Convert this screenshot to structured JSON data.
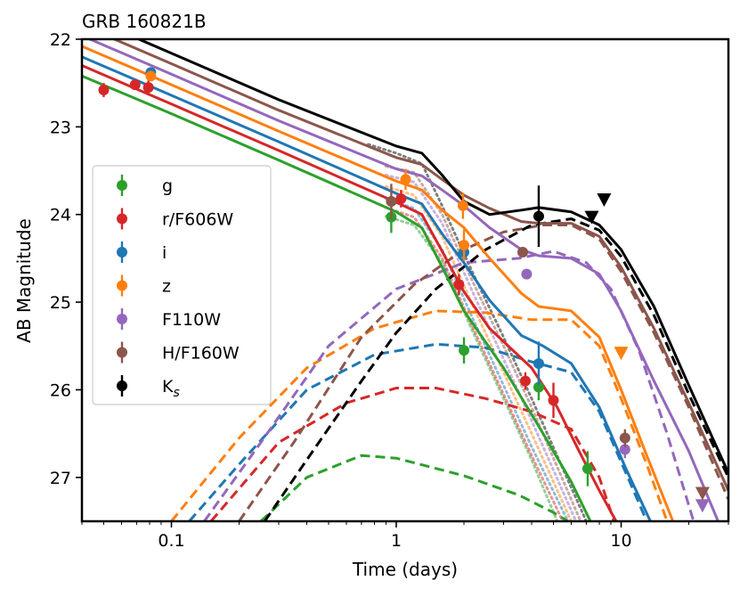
{
  "chart_data": {
    "type": "scatter",
    "title": "GRB 160821B",
    "xlabel": "Time (days)",
    "ylabel": "AB Magnitude",
    "xscale": "log",
    "xlim": [
      0.04,
      30
    ],
    "ylim": [
      27.5,
      22
    ],
    "y_inverted": true,
    "grid": false,
    "legend_position": "center-left",
    "xticks": [
      {
        "value": 0.1,
        "label": "0.1"
      },
      {
        "value": 1,
        "label": "1"
      },
      {
        "value": 10,
        "label": "10"
      }
    ],
    "yticks": [
      {
        "value": 22,
        "label": "22"
      },
      {
        "value": 23,
        "label": "23"
      },
      {
        "value": 24,
        "label": "24"
      },
      {
        "value": 25,
        "label": "25"
      },
      {
        "value": 26,
        "label": "26"
      },
      {
        "value": 27,
        "label": "27"
      }
    ],
    "series": [
      {
        "name": "g",
        "label_main": "g",
        "label_sub": "",
        "color": "#2ca02c",
        "points": [
          [
            0.95,
            24.03,
            0.18
          ],
          [
            2.0,
            25.55,
            0.15
          ],
          [
            4.3,
            25.97,
            0.15
          ],
          [
            7.1,
            26.9,
            0.2
          ]
        ],
        "upper_limits": [],
        "total_model": [
          [
            0.04,
            22.42
          ],
          [
            0.1,
            22.85
          ],
          [
            0.3,
            23.38
          ],
          [
            1.0,
            23.97
          ],
          [
            1.3,
            24.15
          ],
          [
            1.6,
            24.6
          ],
          [
            2.0,
            25.1
          ],
          [
            3.0,
            25.75
          ],
          [
            4.5,
            26.5
          ],
          [
            6.0,
            27.05
          ],
          [
            7.3,
            27.5
          ]
        ],
        "kilonova_model": [
          [
            0.25,
            27.5
          ],
          [
            0.4,
            27.0
          ],
          [
            0.7,
            26.75
          ],
          [
            1.0,
            26.78
          ],
          [
            2.0,
            26.98
          ],
          [
            3.5,
            27.2
          ],
          [
            5.0,
            27.4
          ],
          [
            5.8,
            27.5
          ]
        ],
        "afterglow_model": [
          [
            0.9,
            24.02
          ],
          [
            1.2,
            24.12
          ],
          [
            1.6,
            24.55
          ],
          [
            2.2,
            25.35
          ],
          [
            3.0,
            26.1
          ],
          [
            4.0,
            26.8
          ],
          [
            5.2,
            27.5
          ]
        ]
      },
      {
        "name": "r/F606W",
        "label_main": "r/F606W",
        "label_sub": "",
        "color": "#d62728",
        "points": [
          [
            0.05,
            22.58,
            0.08
          ],
          [
            0.069,
            22.52,
            0.06
          ],
          [
            0.079,
            22.55,
            0.08
          ],
          [
            1.05,
            23.82,
            0.1
          ],
          [
            1.9,
            24.8,
            0.12
          ],
          [
            3.75,
            25.9,
            0.1
          ],
          [
            5.0,
            26.12,
            0.2
          ]
        ],
        "upper_limits": [],
        "total_model": [
          [
            0.04,
            22.3
          ],
          [
            0.1,
            22.74
          ],
          [
            0.3,
            23.27
          ],
          [
            1.0,
            23.86
          ],
          [
            1.3,
            24.0
          ],
          [
            1.6,
            24.42
          ],
          [
            2.0,
            24.88
          ],
          [
            2.6,
            25.3
          ],
          [
            4.0,
            25.75
          ],
          [
            5.2,
            26.2
          ],
          [
            6.5,
            26.7
          ],
          [
            8.0,
            27.15
          ],
          [
            9.5,
            27.5
          ]
        ],
        "kilonova_model": [
          [
            0.15,
            27.5
          ],
          [
            0.3,
            26.6
          ],
          [
            0.6,
            26.15
          ],
          [
            1.0,
            25.98
          ],
          [
            1.5,
            25.98
          ],
          [
            2.5,
            26.1
          ],
          [
            4.0,
            26.25
          ],
          [
            6.0,
            26.45
          ],
          [
            8.0,
            27.0
          ],
          [
            9.3,
            27.5
          ]
        ],
        "afterglow_model": [
          [
            0.9,
            23.92
          ],
          [
            1.2,
            24.03
          ],
          [
            1.6,
            24.5
          ],
          [
            2.2,
            25.3
          ],
          [
            3.0,
            26.05
          ],
          [
            4.0,
            26.75
          ],
          [
            5.5,
            27.5
          ]
        ]
      },
      {
        "name": "i",
        "label_main": "i",
        "label_sub": "",
        "color": "#1f77b4",
        "points": [
          [
            0.081,
            22.38,
            0.05
          ],
          [
            2.0,
            24.43,
            0.1
          ],
          [
            4.3,
            25.7,
            0.25
          ]
        ],
        "upper_limits": [],
        "total_model": [
          [
            0.04,
            22.2
          ],
          [
            0.1,
            22.64
          ],
          [
            0.3,
            23.17
          ],
          [
            1.0,
            23.76
          ],
          [
            1.3,
            23.88
          ],
          [
            1.6,
            24.22
          ],
          [
            2.0,
            24.55
          ],
          [
            2.6,
            24.98
          ],
          [
            3.6,
            25.38
          ],
          [
            4.5,
            25.5
          ],
          [
            6.0,
            25.7
          ],
          [
            8.0,
            26.2
          ],
          [
            10.5,
            26.9
          ],
          [
            13.5,
            27.5
          ]
        ],
        "kilonova_model": [
          [
            0.12,
            27.5
          ],
          [
            0.2,
            26.85
          ],
          [
            0.4,
            26.0
          ],
          [
            0.8,
            25.6
          ],
          [
            1.5,
            25.48
          ],
          [
            2.5,
            25.52
          ],
          [
            4.0,
            25.68
          ],
          [
            6.0,
            25.8
          ],
          [
            8.0,
            26.25
          ],
          [
            10.5,
            26.95
          ],
          [
            13.0,
            27.5
          ]
        ],
        "afterglow_model": [
          [
            0.9,
            23.82
          ],
          [
            1.2,
            23.93
          ],
          [
            1.6,
            24.4
          ],
          [
            2.2,
            25.2
          ],
          [
            3.0,
            25.95
          ],
          [
            4.0,
            26.65
          ],
          [
            5.8,
            27.5
          ]
        ]
      },
      {
        "name": "z",
        "label_main": "z",
        "label_sub": "",
        "color": "#ff7f0e",
        "points": [
          [
            0.081,
            22.42,
            0.05
          ],
          [
            1.1,
            23.6,
            0.12
          ],
          [
            1.98,
            23.9,
            0.15
          ],
          [
            2.0,
            24.35,
            0.18
          ]
        ],
        "upper_limits": [
          [
            10.0,
            25.58
          ]
        ],
        "total_model": [
          [
            0.04,
            22.08
          ],
          [
            0.1,
            22.52
          ],
          [
            0.3,
            23.05
          ],
          [
            1.0,
            23.62
          ],
          [
            1.3,
            23.72
          ],
          [
            1.6,
            23.95
          ],
          [
            2.0,
            24.15
          ],
          [
            2.6,
            24.5
          ],
          [
            3.6,
            24.9
          ],
          [
            4.3,
            25.05
          ],
          [
            6.0,
            25.1
          ],
          [
            8.0,
            25.4
          ],
          [
            10.0,
            26.0
          ],
          [
            13.0,
            26.75
          ],
          [
            17.0,
            27.5
          ]
        ],
        "kilonova_model": [
          [
            0.1,
            27.5
          ],
          [
            0.2,
            26.55
          ],
          [
            0.4,
            25.75
          ],
          [
            0.8,
            25.3
          ],
          [
            1.5,
            25.1
          ],
          [
            2.5,
            25.12
          ],
          [
            4.0,
            25.2
          ],
          [
            6.0,
            25.2
          ],
          [
            8.0,
            25.5
          ],
          [
            10.0,
            26.1
          ],
          [
            13.0,
            26.85
          ],
          [
            16.0,
            27.5
          ]
        ],
        "afterglow_model": [
          [
            0.9,
            23.68
          ],
          [
            1.2,
            23.78
          ],
          [
            1.6,
            24.25
          ],
          [
            2.2,
            25.05
          ],
          [
            3.0,
            25.8
          ],
          [
            4.0,
            26.5
          ],
          [
            6.0,
            27.5
          ]
        ]
      },
      {
        "name": "F110W",
        "label_main": "F110W",
        "label_sub": "",
        "color": "#9467bd",
        "points": [
          [
            3.8,
            24.68,
            0.05
          ],
          [
            10.4,
            26.68,
            0.1
          ]
        ],
        "upper_limits": [
          [
            23.0,
            27.32
          ]
        ],
        "total_model": [
          [
            0.04,
            21.96
          ],
          [
            0.1,
            22.4
          ],
          [
            0.3,
            22.93
          ],
          [
            1.0,
            23.48
          ],
          [
            1.3,
            23.56
          ],
          [
            1.6,
            23.72
          ],
          [
            2.0,
            23.9
          ],
          [
            2.6,
            24.15
          ],
          [
            3.6,
            24.4
          ],
          [
            4.3,
            24.47
          ],
          [
            6.0,
            24.5
          ],
          [
            8.0,
            24.68
          ],
          [
            10.0,
            25.1
          ],
          [
            14.0,
            25.9
          ],
          [
            20.0,
            26.7
          ],
          [
            27.0,
            27.5
          ]
        ],
        "kilonova_model": [
          [
            0.14,
            27.5
          ],
          [
            0.25,
            26.6
          ],
          [
            0.5,
            25.5
          ],
          [
            1.0,
            24.85
          ],
          [
            2.0,
            24.55
          ],
          [
            3.5,
            24.5
          ],
          [
            5.0,
            24.42
          ],
          [
            7.0,
            24.55
          ],
          [
            9.0,
            24.85
          ],
          [
            12.0,
            25.55
          ],
          [
            16.0,
            26.5
          ],
          [
            21.0,
            27.5
          ]
        ],
        "afterglow_model": [
          [
            0.9,
            23.55
          ],
          [
            1.2,
            23.63
          ],
          [
            1.6,
            24.1
          ],
          [
            2.2,
            24.9
          ],
          [
            3.0,
            25.65
          ],
          [
            4.0,
            26.35
          ],
          [
            6.3,
            27.5
          ]
        ]
      },
      {
        "name": "H/F160W",
        "label_main": "H/F160W",
        "label_sub": "",
        "color": "#8c564b",
        "points": [
          [
            0.95,
            23.85,
            0.2
          ],
          [
            3.65,
            24.43,
            0.05
          ],
          [
            10.4,
            26.55,
            0.1
          ]
        ],
        "upper_limits": [
          [
            23.0,
            27.18
          ]
        ],
        "total_model": [
          [
            0.04,
            21.84
          ],
          [
            0.1,
            22.28
          ],
          [
            0.3,
            22.81
          ],
          [
            1.0,
            23.35
          ],
          [
            1.3,
            23.43
          ],
          [
            1.6,
            23.6
          ],
          [
            2.0,
            23.78
          ],
          [
            2.6,
            23.93
          ],
          [
            3.6,
            24.08
          ],
          [
            4.3,
            24.1
          ],
          [
            6.0,
            24.1
          ],
          [
            8.0,
            24.25
          ],
          [
            10.0,
            24.6
          ],
          [
            14.0,
            25.3
          ],
          [
            20.0,
            26.15
          ],
          [
            30.0,
            27.15
          ]
        ],
        "kilonova_model": [
          [
            0.2,
            27.5
          ],
          [
            0.35,
            26.6
          ],
          [
            0.7,
            25.4
          ],
          [
            1.2,
            24.8
          ],
          [
            2.0,
            24.4
          ],
          [
            3.0,
            24.2
          ],
          [
            4.5,
            24.12
          ],
          [
            6.0,
            24.12
          ],
          [
            8.0,
            24.28
          ],
          [
            10.0,
            24.65
          ],
          [
            14.0,
            25.35
          ],
          [
            20.0,
            26.2
          ],
          [
            30.0,
            27.25
          ]
        ],
        "afterglow_model": [
          [
            0.9,
            23.45
          ],
          [
            1.2,
            23.52
          ],
          [
            1.6,
            24.0
          ],
          [
            2.2,
            24.78
          ],
          [
            3.0,
            25.5
          ],
          [
            4.0,
            26.2
          ],
          [
            6.6,
            27.5
          ]
        ]
      },
      {
        "name": "Ks",
        "label_main": "K",
        "label_sub": "s",
        "color": "#000000",
        "points": [
          [
            4.3,
            24.02,
            0.35
          ]
        ],
        "upper_limits": [
          [
            7.4,
            24.03
          ],
          [
            8.4,
            23.83
          ]
        ],
        "total_model": [
          [
            0.04,
            21.72
          ],
          [
            0.1,
            22.16
          ],
          [
            0.3,
            22.69
          ],
          [
            1.0,
            23.22
          ],
          [
            1.3,
            23.3
          ],
          [
            1.6,
            23.55
          ],
          [
            2.0,
            23.85
          ],
          [
            2.6,
            24.0
          ],
          [
            3.6,
            23.95
          ],
          [
            4.3,
            23.92
          ],
          [
            6.0,
            23.97
          ],
          [
            8.0,
            24.12
          ],
          [
            10.0,
            24.4
          ],
          [
            14.0,
            25.05
          ],
          [
            20.0,
            25.95
          ],
          [
            30.0,
            26.95
          ]
        ],
        "kilonova_model": [
          [
            0.26,
            27.5
          ],
          [
            0.4,
            26.8
          ],
          [
            0.7,
            25.9
          ],
          [
            1.0,
            25.35
          ],
          [
            1.5,
            24.85
          ],
          [
            2.5,
            24.4
          ],
          [
            4.0,
            24.12
          ],
          [
            6.0,
            24.05
          ],
          [
            8.0,
            24.18
          ],
          [
            10.0,
            24.48
          ],
          [
            14.0,
            25.15
          ],
          [
            20.0,
            26.05
          ],
          [
            30.0,
            27.0
          ]
        ],
        "afterglow_model": [
          [
            0.75,
            23.2
          ],
          [
            1.0,
            23.3
          ],
          [
            1.3,
            23.42
          ],
          [
            1.6,
            23.9
          ],
          [
            2.2,
            24.68
          ],
          [
            3.0,
            25.4
          ],
          [
            4.0,
            26.1
          ],
          [
            7.0,
            27.5
          ]
        ]
      }
    ]
  }
}
